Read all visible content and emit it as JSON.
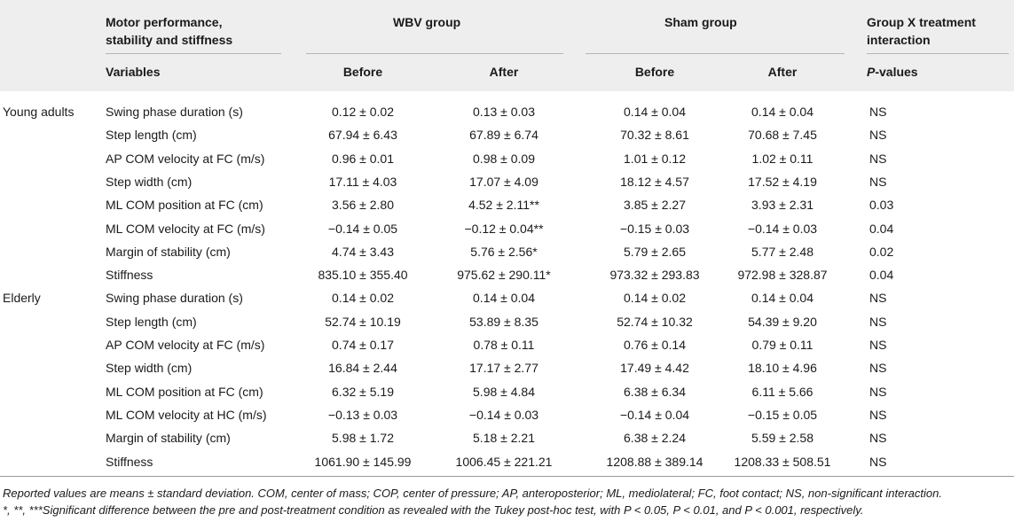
{
  "header": {
    "col_motor": "Motor performance, stability and stiffness",
    "col_motor_line1": "Motor performance,",
    "col_motor_line2": "stability and stiffness",
    "wbv_group": "WBV group",
    "sham_group": "Sham group",
    "interaction_line1": "Group X treatment",
    "interaction_line2": "interaction",
    "variables": "Variables",
    "before": "Before",
    "after": "After",
    "p_values_italic": "P",
    "p_values_rest": "-values"
  },
  "groups": [
    {
      "name": "Young adults",
      "rows": [
        {
          "variable": "Swing phase duration (s)",
          "wbv_before": "0.12 ± 0.02",
          "wbv_after": "0.13 ± 0.03",
          "sham_before": "0.14 ± 0.04",
          "sham_after": "0.14 ± 0.04",
          "p": "NS"
        },
        {
          "variable": "Step length (cm)",
          "wbv_before": "67.94 ± 6.43",
          "wbv_after": "67.89 ± 6.74",
          "sham_before": "70.32 ± 8.61",
          "sham_after": "70.68 ± 7.45",
          "p": "NS"
        },
        {
          "variable": "AP COM velocity at FC (m/s)",
          "wbv_before": "0.96 ± 0.01",
          "wbv_after": "0.98 ± 0.09",
          "sham_before": "1.01 ± 0.12",
          "sham_after": "1.02 ± 0.11",
          "p": "NS"
        },
        {
          "variable": "Step width (cm)",
          "wbv_before": "17.11 ± 4.03",
          "wbv_after": "17.07 ± 4.09",
          "sham_before": "18.12 ± 4.57",
          "sham_after": "17.52 ± 4.19",
          "p": "NS"
        },
        {
          "variable": "ML COM position at FC (cm)",
          "wbv_before": "3.56 ± 2.80",
          "wbv_after": "4.52 ± 2.11**",
          "sham_before": "3.85 ± 2.27",
          "sham_after": "3.93 ± 2.31",
          "p": "0.03"
        },
        {
          "variable": "ML COM velocity at FC (m/s)",
          "wbv_before": "−0.14 ± 0.05",
          "wbv_after": "−0.12 ± 0.04**",
          "sham_before": "−0.15 ± 0.03",
          "sham_after": "−0.14 ± 0.03",
          "p": "0.04"
        },
        {
          "variable": "Margin of stability (cm)",
          "wbv_before": "4.74 ± 3.43",
          "wbv_after": "5.76 ± 2.56*",
          "sham_before": "5.79 ± 2.65",
          "sham_after": "5.77 ± 2.48",
          "p": "0.02"
        },
        {
          "variable": "Stiffness",
          "wbv_before": "835.10 ± 355.40",
          "wbv_after": "975.62 ± 290.11*",
          "sham_before": "973.32 ± 293.83",
          "sham_after": "972.98 ± 328.87",
          "p": "0.04"
        }
      ]
    },
    {
      "name": "Elderly",
      "rows": [
        {
          "variable": "Swing phase duration (s)",
          "wbv_before": "0.14 ± 0.02",
          "wbv_after": "0.14 ± 0.04",
          "sham_before": "0.14 ± 0.02",
          "sham_after": "0.14 ± 0.04",
          "p": "NS"
        },
        {
          "variable": "Step length (cm)",
          "wbv_before": "52.74 ± 10.19",
          "wbv_after": "53.89 ± 8.35",
          "sham_before": "52.74 ± 10.32",
          "sham_after": "54.39 ± 9.20",
          "p": "NS"
        },
        {
          "variable": "AP COM velocity at FC (m/s)",
          "wbv_before": "0.74 ± 0.17",
          "wbv_after": "0.78 ± 0.11",
          "sham_before": "0.76 ± 0.14",
          "sham_after": "0.79 ± 0.11",
          "p": "NS"
        },
        {
          "variable": "Step width (cm)",
          "wbv_before": "16.84 ± 2.44",
          "wbv_after": "17.17 ± 2.77",
          "sham_before": "17.49 ± 4.42",
          "sham_after": "18.10 ± 4.96",
          "p": "NS"
        },
        {
          "variable": "ML COM position at FC (cm)",
          "wbv_before": "6.32 ± 5.19",
          "wbv_after": "5.98 ± 4.84",
          "sham_before": "6.38 ± 6.34",
          "sham_after": "6.11 ± 5.66",
          "p": "NS"
        },
        {
          "variable": "ML COM velocity at HC (m/s)",
          "wbv_before": "−0.13 ± 0.03",
          "wbv_after": "−0.14 ± 0.03",
          "sham_before": "−0.14 ± 0.04",
          "sham_after": "−0.15 ± 0.05",
          "p": "NS"
        },
        {
          "variable": "Margin of stability (cm)",
          "wbv_before": "5.98 ± 1.72",
          "wbv_after": "5.18 ± 2.21",
          "sham_before": "6.38 ± 2.24",
          "sham_after": "5.59 ± 2.58",
          "p": "NS"
        },
        {
          "variable": "Stiffness",
          "wbv_before": "1061.90 ± 145.99",
          "wbv_after": "1006.45 ± 221.21",
          "sham_before": "1208.88 ± 389.14",
          "sham_after": "1208.33 ± 508.51",
          "p": "NS"
        }
      ]
    }
  ],
  "footnotes": {
    "line1": "Reported values are means ± standard deviation. COM, center of mass; COP, center of pressure; AP, anteroposterior; ML, mediolateral; FC, foot contact; NS, non-significant interaction.",
    "line2": "*, **, ***Significant difference between the pre and post-treatment condition as revealed with the Tukey post-hoc test, with P < 0.05, P < 0.01, and P < 0.001, respectively."
  }
}
